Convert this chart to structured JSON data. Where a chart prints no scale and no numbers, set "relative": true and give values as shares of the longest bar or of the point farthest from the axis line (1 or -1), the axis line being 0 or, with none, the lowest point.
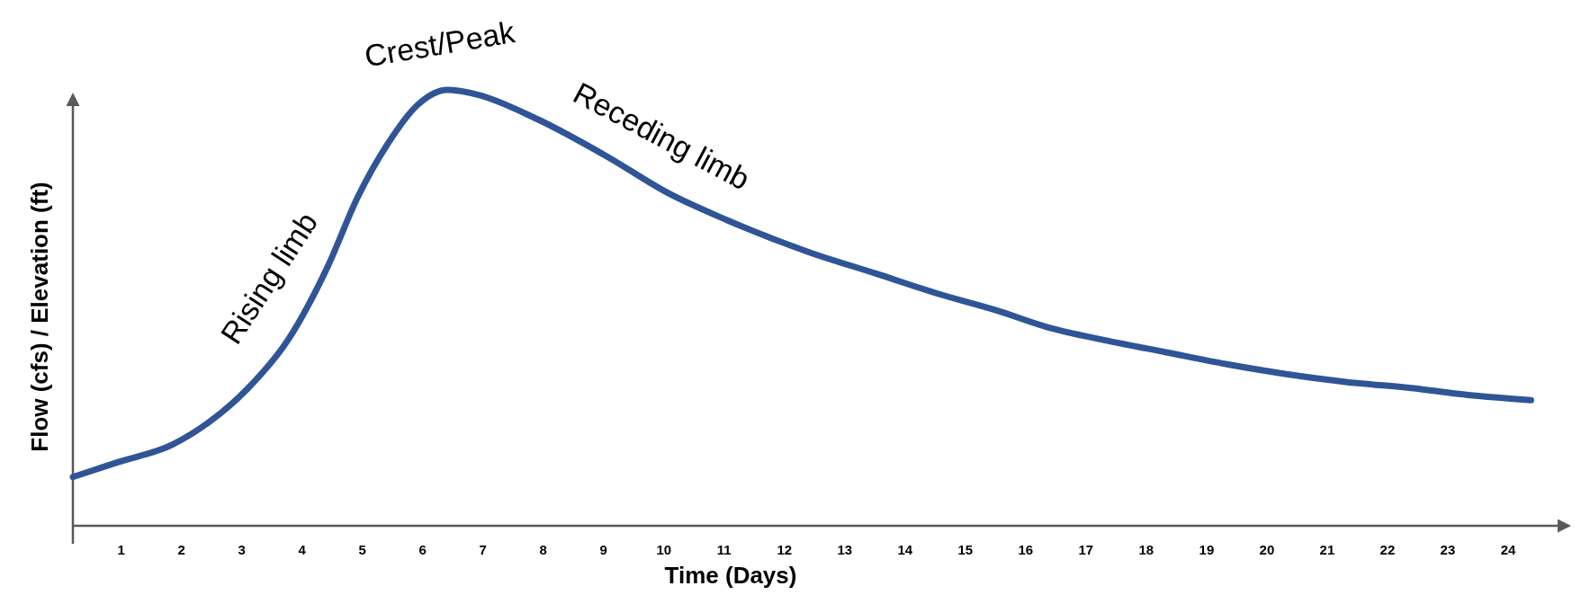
{
  "chart_data": {
    "type": "line",
    "relative": true,
    "xlabel": "Time (Days)",
    "ylabel": "Flow (cfs) / Elevation (ft)",
    "xlim": [
      0.2,
      25
    ],
    "xticks": [
      1,
      2,
      3,
      4,
      5,
      6,
      7,
      8,
      9,
      10,
      11,
      12,
      13,
      14,
      15,
      16,
      17,
      18,
      19,
      20,
      21,
      22,
      23,
      24
    ],
    "grid": false,
    "marker": "none",
    "line_style": "solid",
    "series": [
      {
        "color": "#2f5597",
        "x": [
          0.2,
          0.95,
          1.86,
          2.44,
          3.1,
          3.77,
          4.43,
          4.92,
          5.42,
          5.92,
          6.41,
          6.91,
          7.9,
          9.06,
          10.06,
          11.05,
          12.38,
          13.53,
          14.53,
          15.52,
          16.35,
          17.34,
          18.33,
          19.32,
          20.32,
          21.31,
          22.47,
          23.14,
          24.38
        ],
        "values": [
          0.112,
          0.146,
          0.187,
          0.236,
          0.315,
          0.427,
          0.596,
          0.753,
          0.876,
          0.966,
          1,
          0.989,
          0.933,
          0.847,
          0.764,
          0.701,
          0.629,
          0.578,
          0.533,
          0.494,
          0.456,
          0.425,
          0.398,
          0.371,
          0.348,
          0.33,
          0.315,
          0.303,
          0.288
        ]
      }
    ],
    "annotations": [
      {
        "text": "Crest/Peak",
        "x": 6.41,
        "y": 1
      },
      {
        "text": "Rising limb",
        "x": 4.1,
        "y": 0.51
      },
      {
        "text": "Receding limb",
        "x": 9.6,
        "y": 0.8
      }
    ]
  }
}
